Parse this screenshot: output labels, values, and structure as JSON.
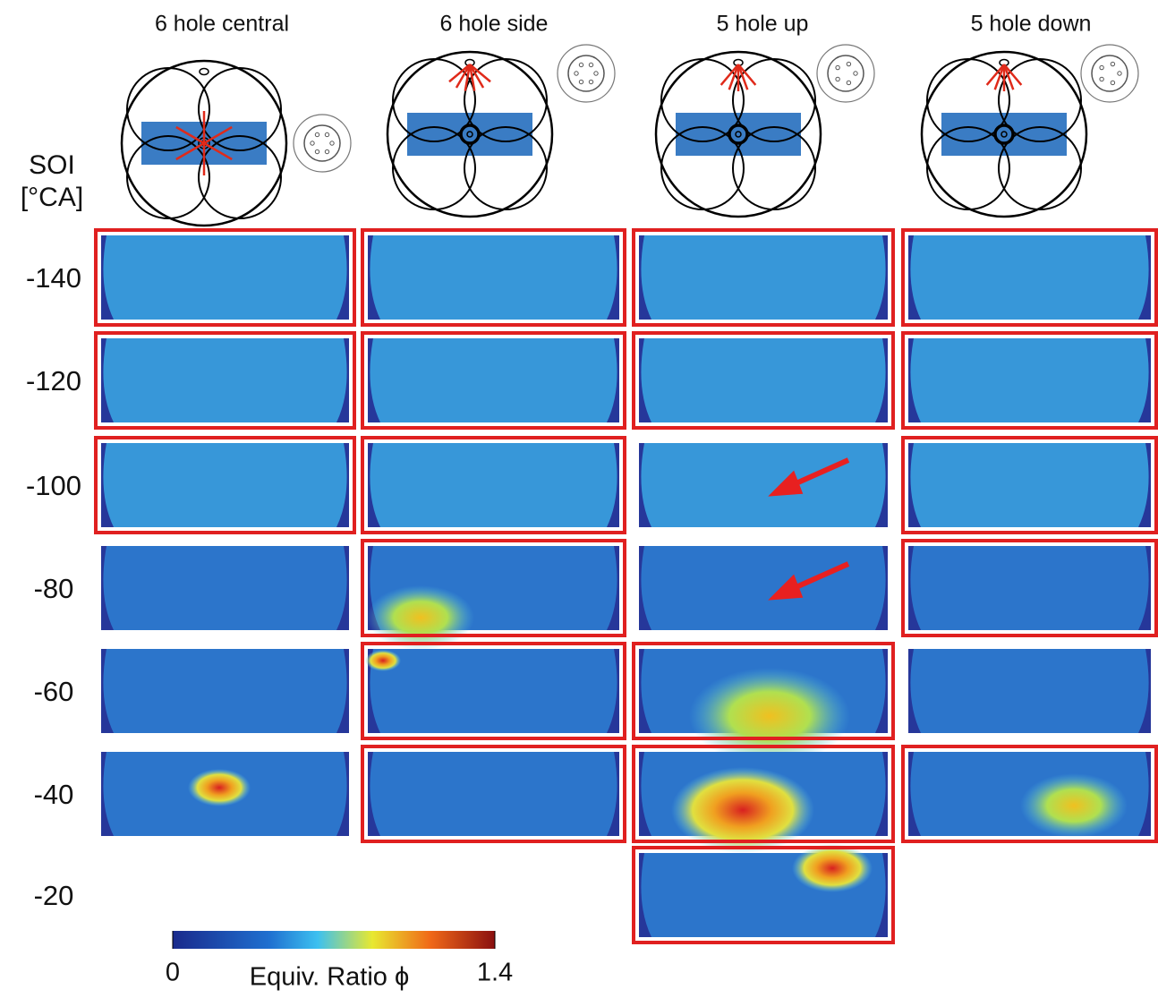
{
  "columns": [
    "6 hole central",
    "6 hole side",
    "5 hole up",
    "5 hole down"
  ],
  "y_label": [
    "SOI",
    "[°CA]"
  ],
  "rows": [
    {
      "label": "-140",
      "framed": [
        true,
        true,
        true,
        true
      ]
    },
    {
      "label": "-120",
      "framed": [
        true,
        true,
        true,
        true
      ]
    },
    {
      "label": "-100",
      "framed": [
        true,
        true,
        false,
        true
      ]
    },
    {
      "label": "-80",
      "framed": [
        false,
        true,
        false,
        true
      ]
    },
    {
      "label": "-60",
      "framed": [
        false,
        true,
        true,
        false
      ]
    },
    {
      "label": "-40",
      "framed": [
        false,
        true,
        true,
        true
      ]
    },
    {
      "label": "-20",
      "framed": [
        null,
        null,
        true,
        null
      ]
    }
  ],
  "colorbar": {
    "label": "Equiv. Ratio ϕ",
    "lim": [
      0,
      1.4
    ],
    "ticks": [
      0,
      1.4
    ]
  }
}
